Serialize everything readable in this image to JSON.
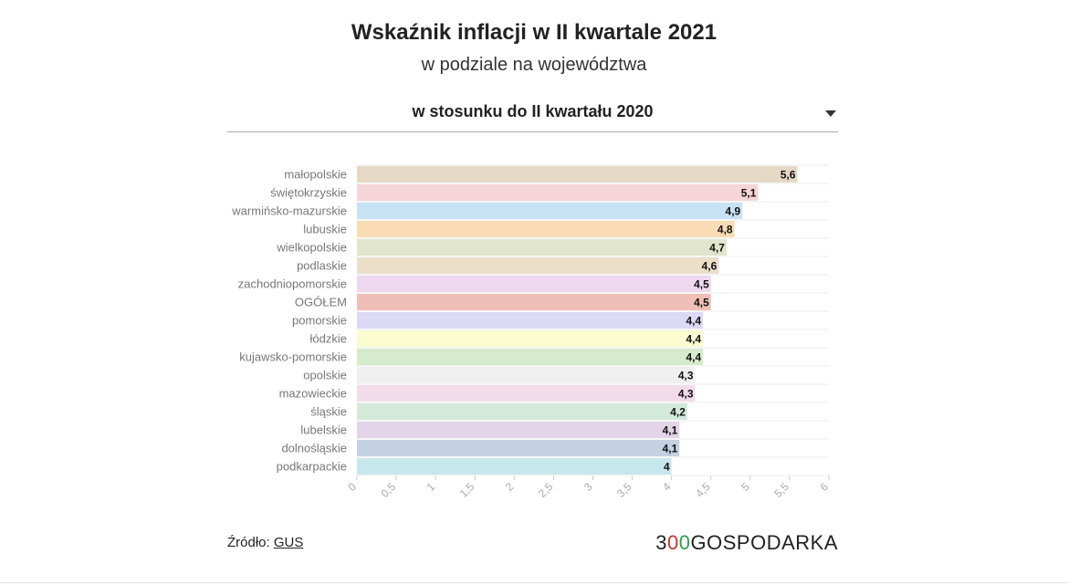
{
  "header": {
    "title": "Wskaźnik inflacji w II kwartale 2021",
    "subtitle": "w podziale na województwa"
  },
  "selector": {
    "label": "w stosunku do II kwartału 2020"
  },
  "chart_data": {
    "type": "bar",
    "orientation": "horizontal",
    "categories": [
      "małopolskie",
      "świętokrzyskie",
      "warmińsko-mazurskie",
      "lubuskie",
      "wielkopolskie",
      "podlaskie",
      "zachodniopomorskie",
      "OGÓŁEM",
      "pomorskie",
      "łódzkie",
      "kujawsko-pomorskie",
      "opolskie",
      "mazowieckie",
      "śląskie",
      "lubelskie",
      "dolnośląskie",
      "podkarpackie"
    ],
    "values": [
      5.6,
      5.1,
      4.9,
      4.8,
      4.7,
      4.6,
      4.5,
      4.5,
      4.4,
      4.4,
      4.4,
      4.3,
      4.3,
      4.2,
      4.1,
      4.1,
      4
    ],
    "value_labels": [
      "5,6",
      "5,1",
      "4,9",
      "4,8",
      "4,7",
      "4,6",
      "4,5",
      "4,5",
      "4,4",
      "4,4",
      "4,4",
      "4,3",
      "4,3",
      "4,2",
      "4,1",
      "4,1",
      "4"
    ],
    "colors": [
      "#e5d9c5",
      "#f6d5d9",
      "#c8e2f5",
      "#f9dcb4",
      "#e0e5cb",
      "#ecdfc9",
      "#eed8f0",
      "#efbfb7",
      "#dcd9f6",
      "#fafbcf",
      "#d6ebcc",
      "#efefef",
      "#f3dcea",
      "#d3eadb",
      "#e3d4e8",
      "#c4d1e3",
      "#c6e7ec"
    ],
    "xlim": [
      0,
      6
    ],
    "xticks": [
      "0",
      "0,5",
      "1",
      "1,5",
      "2",
      "2,5",
      "3",
      "3,5",
      "4",
      "4,5",
      "5",
      "5,5",
      "6"
    ],
    "grid": true
  },
  "footer": {
    "source_prefix": "Źródło:",
    "source_link": "GUS",
    "logo": {
      "part1": "3",
      "part2": "0",
      "part3": "0",
      "part4": "GOSPODARKA"
    }
  }
}
